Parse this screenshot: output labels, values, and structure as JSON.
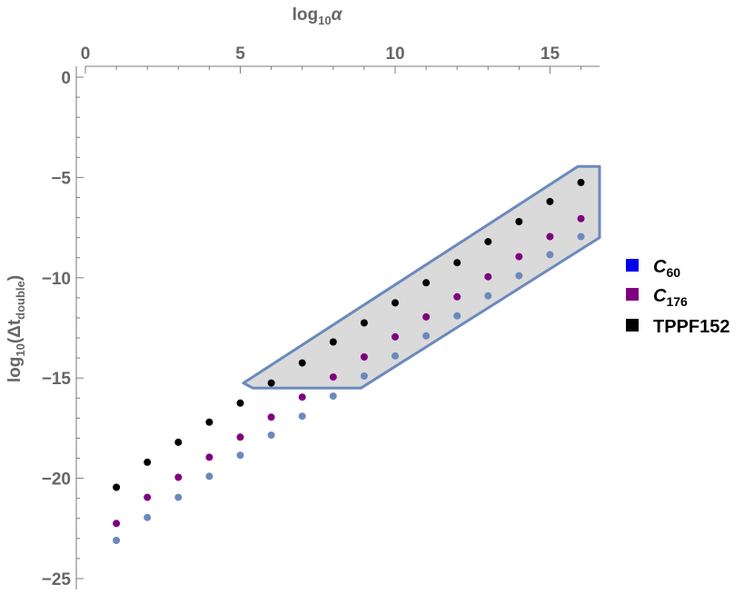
{
  "chart_data": {
    "type": "scatter",
    "xlabel": {
      "base": "log",
      "sub": "10",
      "tail": "α"
    },
    "ylabel": {
      "pre": "log",
      "sub1": "10",
      "mid": "(Δt",
      "sub2": "double",
      "post": ")"
    },
    "xlim": [
      0,
      16.6
    ],
    "ylim": [
      -25,
      0
    ],
    "x_ticks": [
      0,
      5,
      10,
      15
    ],
    "y_ticks": [
      0,
      -5,
      -10,
      -15,
      -20,
      -25
    ],
    "x_axis_position": "top",
    "grid": false,
    "legend_position": "right",
    "legend": [
      {
        "main": "C",
        "sub": "60",
        "italic": true,
        "color": "#0000ee"
      },
      {
        "main": "C",
        "sub": "176",
        "italic": true,
        "color": "#800080"
      },
      {
        "main": "TPPF152",
        "sub": "",
        "italic": false,
        "color": "#000000"
      }
    ],
    "series": [
      {
        "color": "#000000",
        "x": [
          1,
          2,
          3,
          4,
          5,
          6,
          7,
          8,
          9,
          10,
          11,
          12,
          13,
          14,
          15,
          16
        ],
        "y": [
          -20.45,
          -19.2,
          -18.2,
          -17.2,
          -16.25,
          -15.25,
          -14.25,
          -13.2,
          -12.25,
          -11.25,
          -10.25,
          -9.25,
          -8.2,
          -7.2,
          -6.2,
          -5.25
        ]
      },
      {
        "color": "#800080",
        "x": [
          1,
          2,
          3,
          4,
          5,
          6,
          7,
          8,
          9,
          10,
          11,
          12,
          13,
          14,
          15,
          16
        ],
        "y": [
          -22.25,
          -20.95,
          -19.95,
          -18.95,
          -17.95,
          -16.95,
          -15.95,
          -14.95,
          -13.95,
          -12.95,
          -11.95,
          -10.95,
          -9.95,
          -8.95,
          -7.95,
          -7.05
        ]
      },
      {
        "color": "#6b89bd",
        "x": [
          1,
          2,
          3,
          4,
          5,
          6,
          7,
          8,
          9,
          10,
          11,
          12,
          13,
          14,
          15,
          16
        ],
        "y": [
          -23.1,
          -21.95,
          -20.95,
          -19.9,
          -18.85,
          -17.85,
          -16.9,
          -15.9,
          -14.9,
          -13.9,
          -12.9,
          -11.9,
          -10.9,
          -9.9,
          -8.85,
          -7.95
        ]
      }
    ],
    "region": {
      "fill": "#dadada",
      "stroke": "#6b89bd",
      "polygon": [
        [
          5.1,
          -15.25
        ],
        [
          5.4,
          -15.5
        ],
        [
          8.9,
          -15.5
        ],
        [
          16.6,
          -8.0
        ],
        [
          16.6,
          -4.45
        ],
        [
          15.9,
          -4.45
        ]
      ]
    }
  }
}
